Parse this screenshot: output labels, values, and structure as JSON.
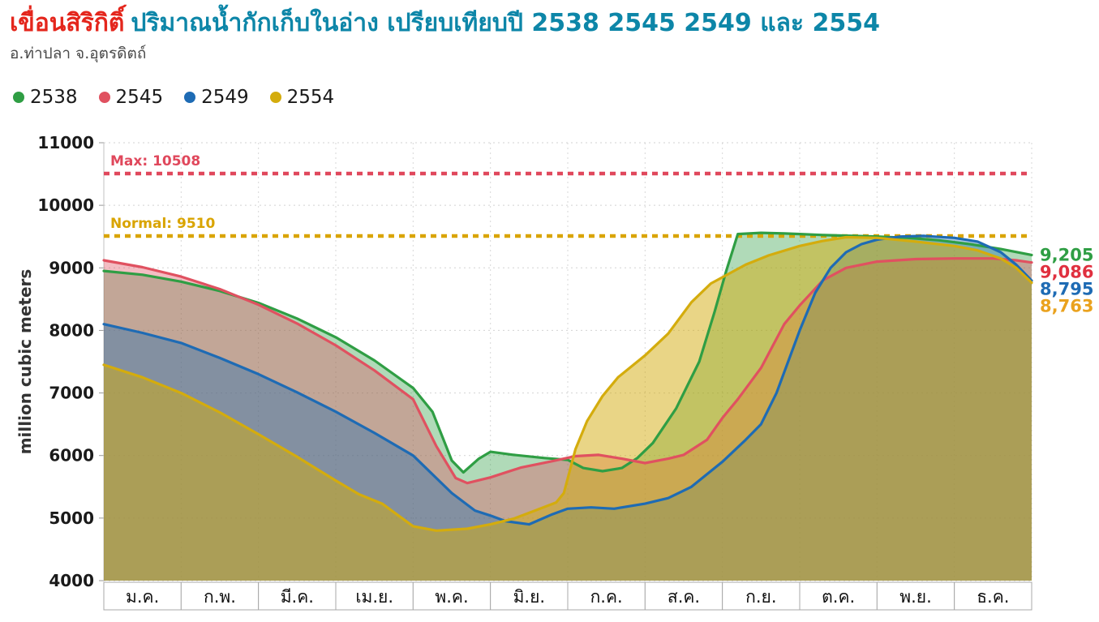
{
  "header": {
    "title_red": "เขื่อนสิริกิติ์",
    "title_teal": "ปริมาณน้ำกักเก็บในอ่าง เปรียบเทียบปี 2538 2545 2549 และ 2554",
    "subtitle": "อ.ท่าปลา จ.อุตรดิตถ์"
  },
  "legend": {
    "items": [
      {
        "label": "2538",
        "color": "#2f9e44"
      },
      {
        "label": "2545",
        "color": "#e05160"
      },
      {
        "label": "2549",
        "color": "#1e6bb4"
      },
      {
        "label": "2554",
        "color": "#d4ac0d"
      }
    ]
  },
  "chart_data": {
    "type": "area",
    "title": "เขื่อนสิริกิติ์ ปริมาณน้ำกักเก็บในอ่าง เปรียบเทียบปี 2538 2545 2549 และ 2554",
    "subtitle": "อ.ท่าปลา จ.อุตรดิตถ์",
    "xlabel": "",
    "ylabel": "million cubic meters",
    "ylim": [
      4000,
      11000
    ],
    "y_ticks": [
      11000,
      10000,
      9000,
      8000,
      7000,
      6000,
      5000,
      4000
    ],
    "x_categories": [
      "ม.ค.",
      "ก.พ.",
      "มี.ค.",
      "เม.ย.",
      "พ.ค.",
      "มิ.ย.",
      "ก.ค.",
      "ส.ค.",
      "ก.ย.",
      "ต.ค.",
      "พ.ย.",
      "ธ.ค."
    ],
    "grid": true,
    "legend_position": "top-left",
    "reference_lines": [
      {
        "label": "Max: 10508",
        "value": 10508,
        "color": "#e0485c"
      },
      {
        "label": "Normal: 9510",
        "value": 9510,
        "color": "#d9a400"
      }
    ],
    "series": [
      {
        "name": "2538",
        "color": "#2f9e44",
        "label_color": "#2f9e44",
        "fill_opacity": 0.38,
        "end_label": "9,205",
        "end_value": 9205,
        "x": [
          0,
          0.5,
          1,
          1.5,
          2,
          2.5,
          3,
          3.5,
          4,
          4.25,
          4.5,
          4.65,
          4.85,
          5,
          5.3,
          5.7,
          6,
          6.2,
          6.45,
          6.7,
          6.9,
          7.1,
          7.4,
          7.7,
          7.9,
          8.05,
          8.2,
          8.5,
          8.8,
          9,
          9.3,
          9.6,
          10,
          10.4,
          10.8,
          11.2,
          11.6,
          12
        ],
        "values": [
          8950,
          8890,
          8780,
          8630,
          8440,
          8190,
          7890,
          7520,
          7080,
          6700,
          5920,
          5730,
          5950,
          6060,
          6010,
          5960,
          5930,
          5800,
          5750,
          5800,
          5960,
          6200,
          6750,
          7500,
          8300,
          8950,
          9540,
          9560,
          9550,
          9540,
          9525,
          9515,
          9500,
          9480,
          9440,
          9380,
          9300,
          9205
        ]
      },
      {
        "name": "2545",
        "color": "#e05160",
        "label_color": "#e0303f",
        "fill_opacity": 0.38,
        "end_label": "9,086",
        "end_value": 9086,
        "x": [
          0,
          0.5,
          1,
          1.5,
          2,
          2.5,
          3,
          3.5,
          4,
          4.3,
          4.55,
          4.7,
          5,
          5.4,
          5.8,
          6.1,
          6.4,
          6.7,
          7,
          7.3,
          7.5,
          7.8,
          8,
          8.2,
          8.5,
          8.8,
          9,
          9.3,
          9.6,
          10,
          10.5,
          11,
          11.5,
          11.8,
          12
        ],
        "values": [
          9120,
          9010,
          8860,
          8660,
          8410,
          8110,
          7760,
          7360,
          6900,
          6150,
          5640,
          5560,
          5650,
          5810,
          5910,
          5990,
          6010,
          5950,
          5880,
          5950,
          6010,
          6250,
          6600,
          6900,
          7400,
          8100,
          8400,
          8800,
          9000,
          9100,
          9140,
          9150,
          9150,
          9120,
          9086
        ]
      },
      {
        "name": "2549",
        "color": "#1e6bb4",
        "label_color": "#1e6bb4",
        "fill_opacity": 0.38,
        "end_label": "8,795",
        "end_value": 8795,
        "x": [
          0,
          0.5,
          1,
          1.5,
          2,
          2.5,
          3,
          3.5,
          4,
          4.5,
          4.8,
          5,
          5.2,
          5.5,
          5.8,
          6,
          6.3,
          6.6,
          7,
          7.3,
          7.6,
          8,
          8.3,
          8.5,
          8.7,
          9,
          9.2,
          9.4,
          9.6,
          9.8,
          10,
          10.3,
          10.6,
          11,
          11.3,
          11.6,
          11.8,
          12
        ],
        "values": [
          8100,
          7960,
          7800,
          7560,
          7300,
          7010,
          6700,
          6360,
          6000,
          5400,
          5120,
          5040,
          4950,
          4900,
          5060,
          5150,
          5170,
          5150,
          5230,
          5320,
          5500,
          5900,
          6250,
          6500,
          7000,
          8000,
          8600,
          9000,
          9250,
          9380,
          9450,
          9500,
          9510,
          9480,
          9420,
          9250,
          9050,
          8795
        ]
      },
      {
        "name": "2554",
        "color": "#d4ac0d",
        "label_color": "#eaa21e",
        "fill_opacity": 0.5,
        "end_label": "8,763",
        "end_value": 8763,
        "x": [
          0,
          0.5,
          1,
          1.5,
          2,
          2.5,
          3,
          3.3,
          3.6,
          4,
          4.3,
          4.7,
          5,
          5.3,
          5.6,
          5.85,
          5.95,
          6.1,
          6.25,
          6.45,
          6.65,
          6.85,
          7,
          7.3,
          7.6,
          7.85,
          8,
          8.3,
          8.6,
          9,
          9.3,
          9.6,
          10,
          10.5,
          11,
          11.3,
          11.6,
          11.8,
          12
        ],
        "values": [
          7450,
          7250,
          7000,
          6690,
          6340,
          5980,
          5600,
          5380,
          5230,
          4870,
          4800,
          4830,
          4900,
          4990,
          5130,
          5250,
          5400,
          6100,
          6550,
          6950,
          7250,
          7450,
          7600,
          7950,
          8450,
          8750,
          8850,
          9050,
          9200,
          9350,
          9430,
          9490,
          9480,
          9420,
          9350,
          9280,
          9150,
          9000,
          8763
        ]
      }
    ]
  }
}
